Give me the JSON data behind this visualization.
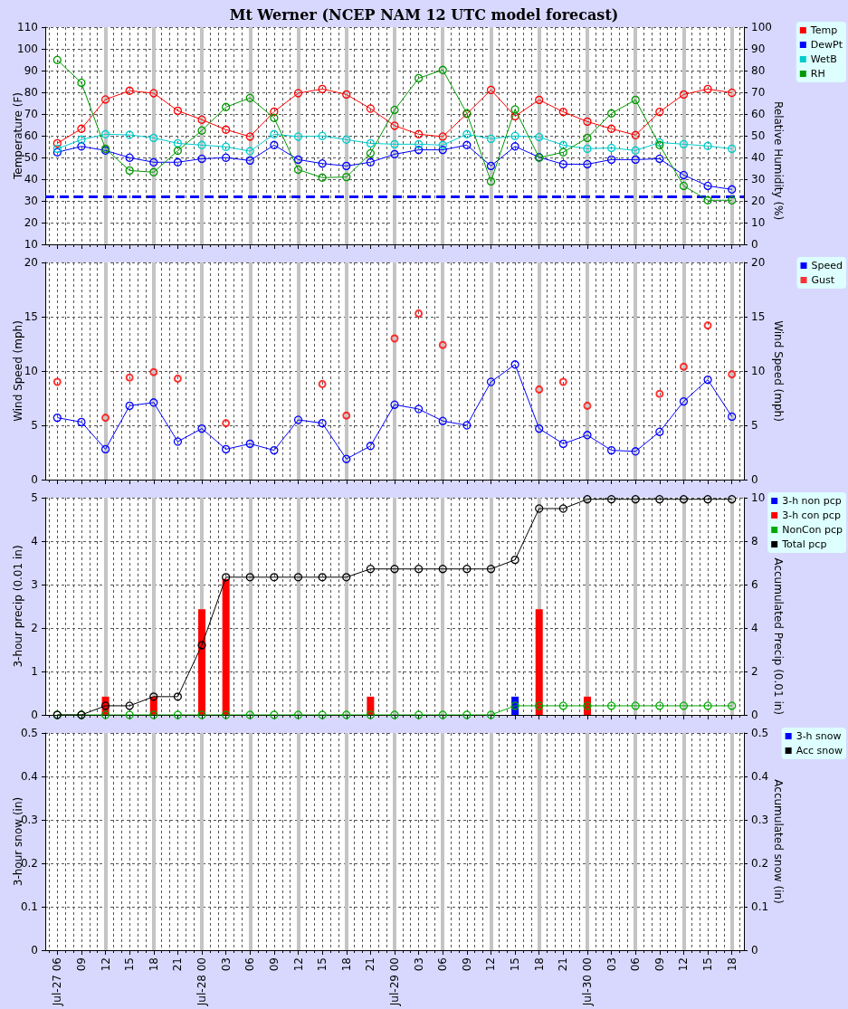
{
  "chart_data": [
    {
      "type": "line",
      "title": "Mt Werner (NCEP NAM 12 UTC model forecast)",
      "ylabel": "Temperature (F)",
      "y2label": "Relative Humidity (%)",
      "categories": [
        null,
        null,
        null,
        null,
        null,
        null,
        null,
        null,
        null,
        null,
        null,
        null,
        null,
        null,
        null,
        null,
        null,
        null,
        null,
        null,
        null,
        null,
        null,
        null,
        null,
        null,
        null,
        null,
        null
      ],
      "ylim": [
        10,
        110
      ],
      "yticks": [
        10,
        20,
        30,
        40,
        50,
        60,
        70,
        80,
        90,
        100,
        110
      ],
      "y2lim": [
        0,
        100
      ],
      "y2ticks": [
        0,
        10,
        20,
        30,
        40,
        50,
        60,
        70,
        80,
        90,
        100
      ],
      "series": [
        {
          "name": "Temp",
          "color": "#ff0000",
          "values": [
            56.5,
            63.2,
            76.7,
            80.7,
            79.6,
            71.5,
            67.4,
            62.8,
            59.6,
            71.1,
            79.6,
            81.5,
            79.0,
            72.5,
            64.6,
            60.7,
            59.6,
            70.1,
            81.1,
            69.0,
            76.5,
            71.0,
            66.5,
            63.2,
            60.3,
            71.0,
            79.0,
            81.5,
            79.8
          ]
        },
        {
          "name": "DewPt",
          "color": "#0000ff",
          "values": [
            52.4,
            55.1,
            53.2,
            49.9,
            47.8,
            47.8,
            49.4,
            49.9,
            48.6,
            55.7,
            49.0,
            47.2,
            46.1,
            47.8,
            51.5,
            53.5,
            53.5,
            55.7,
            46.1,
            55.1,
            50.1,
            46.9,
            46.9,
            49.0,
            49.0,
            49.4,
            41.9,
            36.9,
            35.3
          ]
        },
        {
          "name": "WetB",
          "color": "#00cccc",
          "values": [
            54.0,
            58.2,
            60.7,
            60.4,
            59.0,
            56.5,
            55.7,
            54.9,
            52.9,
            60.7,
            59.6,
            59.9,
            58.2,
            56.5,
            56.1,
            56.1,
            55.7,
            60.7,
            58.6,
            59.9,
            59.4,
            55.7,
            54.0,
            54.4,
            53.2,
            56.9,
            56.1,
            55.3,
            54.0
          ]
        },
        {
          "name": "RH",
          "color": "#009900",
          "axis": "y2",
          "values": [
            84.9,
            74.4,
            44.0,
            34.0,
            33.2,
            43.1,
            52.4,
            63.2,
            67.4,
            58.2,
            34.4,
            30.7,
            31.0,
            41.9,
            61.9,
            76.5,
            80.3,
            60.3,
            29.0,
            62.1,
            39.9,
            42.4,
            49.0,
            60.3,
            66.5,
            45.7,
            26.9,
            20.3,
            20.3
          ]
        }
      ],
      "ref_lines": [
        {
          "axis": "y",
          "value": 32,
          "color": "#0000ff",
          "line_style": "dashed"
        }
      ],
      "marker": "circle",
      "grid": true,
      "legend": "top right",
      "tick_labels": "y"
    },
    {
      "type": "line",
      "ylabel": "Wind Speed (mph)",
      "y2label": "Wind Speed (mph)",
      "categories": [
        null,
        null,
        null,
        null,
        null,
        null,
        null,
        null,
        null,
        null,
        null,
        null,
        null,
        null,
        null,
        null,
        null,
        null,
        null,
        null,
        null,
        null,
        null,
        null,
        null,
        null,
        null,
        null,
        null
      ],
      "ylim": [
        0,
        20
      ],
      "yticks": [
        0,
        5,
        10,
        15,
        20
      ],
      "y2lim": [
        0,
        20
      ],
      "y2ticks": [
        0,
        5,
        10,
        15,
        20
      ],
      "series": [
        {
          "name": "Speed",
          "color": "#0000ff",
          "values": [
            5.7,
            5.3,
            2.8,
            6.8,
            7.1,
            3.5,
            4.7,
            2.8,
            3.3,
            2.7,
            5.5,
            5.2,
            1.9,
            3.1,
            6.9,
            6.5,
            5.4,
            5.0,
            9.0,
            10.6,
            4.7,
            3.3,
            4.1,
            2.7,
            2.6,
            4.4,
            7.2,
            9.2,
            5.8
          ]
        },
        {
          "name": "Gust",
          "type": "scatter",
          "color": "#ff0000",
          "values": [
            9.0,
            null,
            5.7,
            9.4,
            9.9,
            9.3,
            null,
            5.2,
            null,
            null,
            null,
            8.8,
            5.9,
            null,
            13.0,
            15.3,
            12.4,
            null,
            null,
            null,
            8.3,
            9.0,
            6.8,
            null,
            null,
            7.9,
            10.4,
            14.2,
            9.7
          ]
        }
      ],
      "marker": "circle",
      "grid": true,
      "legend": "top right",
      "tick_labels": "y"
    },
    {
      "type": "bar",
      "ylabel": "3-hour precip (0.01 in)",
      "y2label": "Accumulated Precip (0.01 in)",
      "categories": [
        null,
        null,
        null,
        null,
        null,
        null,
        null,
        null,
        null,
        null,
        null,
        null,
        null,
        null,
        null,
        null,
        null,
        null,
        null,
        null,
        null,
        null,
        null,
        null,
        null,
        null,
        null,
        null,
        null
      ],
      "ylim": [
        0,
        5
      ],
      "yticks": [
        0,
        1,
        2,
        3,
        4,
        5
      ],
      "y2lim": [
        0,
        10
      ],
      "y2ticks": [
        0,
        2,
        4,
        6,
        8,
        10
      ],
      "series": [
        {
          "name": "3-h non pcp",
          "color": "#0000ff",
          "values": [
            null,
            null,
            null,
            null,
            null,
            null,
            null,
            null,
            null,
            null,
            null,
            null,
            null,
            null,
            null,
            null,
            null,
            null,
            null,
            0.42,
            null,
            null,
            null,
            null,
            null,
            null,
            null,
            null,
            null
          ]
        },
        {
          "name": "3-h con pcp",
          "color": "#ff0000",
          "values": [
            null,
            null,
            0.42,
            null,
            0.42,
            null,
            2.43,
            3.13,
            null,
            null,
            null,
            null,
            null,
            0.42,
            null,
            null,
            null,
            null,
            null,
            null,
            2.43,
            null,
            0.42,
            null,
            null,
            null,
            null,
            null,
            null
          ]
        },
        {
          "name": "NonCon pcp",
          "type": "line",
          "axis": "y2",
          "color": "#00aa00",
          "values": [
            0,
            0,
            0,
            0,
            0,
            0,
            0,
            0,
            0,
            0,
            0,
            0,
            0,
            0,
            0,
            0,
            0,
            0,
            0,
            0.42,
            0.42,
            0.42,
            0.42,
            0.42,
            0.42,
            0.42,
            0.42,
            0.42,
            0.42
          ]
        },
        {
          "name": "Total pcp",
          "type": "line",
          "axis": "y2",
          "color": "#000000",
          "values": [
            0,
            0,
            0.42,
            0.42,
            0.84,
            0.84,
            3.21,
            6.34,
            6.34,
            6.34,
            6.34,
            6.34,
            6.34,
            6.72,
            6.72,
            6.72,
            6.72,
            6.72,
            6.72,
            7.14,
            9.5,
            9.5,
            9.93,
            9.93,
            9.93,
            9.93,
            9.93,
            9.93,
            9.93
          ]
        }
      ],
      "stacked": true,
      "marker": "circle",
      "grid": true,
      "legend": "top right",
      "tick_labels": "y"
    },
    {
      "type": "bar",
      "ylabel": "3-hour snow (in)",
      "y2label": "Accumulated snow (in)",
      "categories": [
        "Jul-27 06",
        "09",
        "12",
        "15",
        "18",
        "21",
        "Jul-28 00",
        "03",
        "06",
        "09",
        "12",
        "15",
        "18",
        "21",
        "Jul-29 00",
        "03",
        "06",
        "09",
        "12",
        "15",
        "18",
        "21",
        "Jul-30 00",
        "03",
        "06",
        "09",
        "12",
        "15",
        "18"
      ],
      "ylim": [
        0,
        0.5
      ],
      "yticks": [
        0,
        0.1,
        0.2,
        0.3,
        0.4,
        0.5
      ],
      "y2lim": [
        0,
        0.5
      ],
      "y2ticks": [
        0,
        0.1,
        0.2,
        0.3,
        0.4,
        0.5
      ],
      "series": [
        {
          "name": "3-h snow",
          "color": "#0000ff",
          "values": [
            null,
            null,
            null,
            null,
            null,
            null,
            null,
            null,
            null,
            null,
            null,
            null,
            null,
            null,
            null,
            null,
            null,
            null,
            null,
            null,
            null,
            null,
            null,
            null,
            null,
            null,
            null,
            null,
            null
          ]
        },
        {
          "name": "Acc snow",
          "type": "line",
          "axis": "y2",
          "color": "#000000",
          "values": [
            null,
            null,
            null,
            null,
            null,
            null,
            null,
            null,
            null,
            null,
            null,
            null,
            null,
            null,
            null,
            null,
            null,
            null,
            null,
            null,
            null,
            null,
            null,
            null,
            null,
            null,
            null,
            null,
            null
          ]
        }
      ],
      "stacked": true,
      "marker": "circle",
      "grid": true,
      "legend": "top right"
    }
  ]
}
